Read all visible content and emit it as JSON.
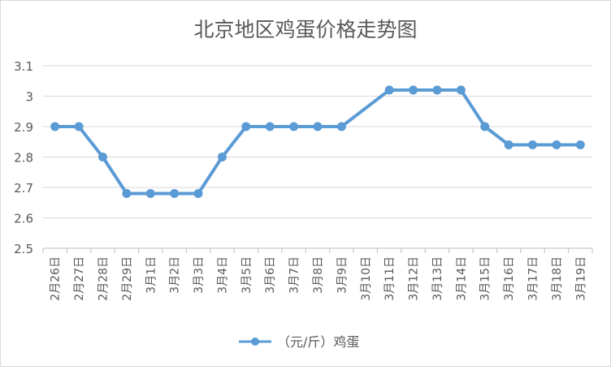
{
  "chart_data": {
    "type": "line",
    "title": "北京地区鸡蛋价格走势图",
    "xlabel": "",
    "ylabel": "",
    "ylim": [
      2.5,
      3.1
    ],
    "yticks": [
      "2.5",
      "2.6",
      "2.7",
      "2.8",
      "2.9",
      "3",
      "3.1"
    ],
    "grid": true,
    "legend_position": "bottom",
    "categories": [
      "2月26日",
      "2月27日",
      "2月28日",
      "2月29日",
      "3月1日",
      "3月2日",
      "3月3日",
      "3月4日",
      "3月5日",
      "3月6日",
      "3月7日",
      "3月8日",
      "3月9日",
      "3月10日",
      "3月11日",
      "3月12日",
      "3月13日",
      "3月14日",
      "3月15日",
      "3月16日",
      "3月17日",
      "3月18日",
      "3月19日"
    ],
    "series": [
      {
        "name": "（元/斤）鸡蛋",
        "color": "#5b9bd5",
        "values": [
          2.9,
          2.9,
          2.8,
          2.68,
          2.68,
          2.68,
          2.68,
          2.8,
          2.9,
          2.9,
          2.9,
          2.9,
          2.9,
          null,
          3.02,
          3.02,
          3.02,
          3.02,
          2.9,
          2.84,
          2.84,
          2.84,
          2.84
        ]
      }
    ]
  }
}
